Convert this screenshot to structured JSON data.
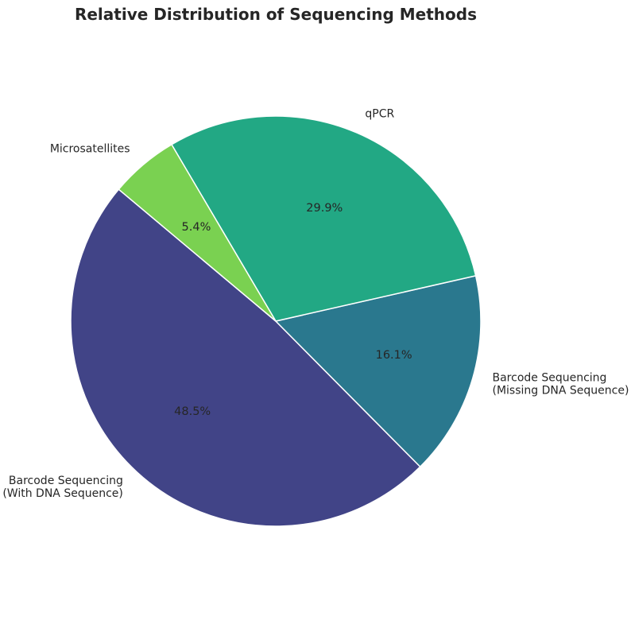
{
  "chart_data": {
    "type": "pie",
    "title": "Relative Distribution of Sequencing Methods",
    "start_angle_deg": 140,
    "direction": "counterclockwise",
    "slices": [
      {
        "label_lines": [
          "Barcode Sequencing",
          "(With DNA Sequence)"
        ],
        "value": 48.5,
        "pct_label": "48.5%",
        "color": "#414487"
      },
      {
        "label_lines": [
          "Barcode Sequencing",
          "(Missing DNA Sequence)"
        ],
        "value": 16.1,
        "pct_label": "16.1%",
        "color": "#2A788E"
      },
      {
        "label_lines": [
          "qPCR"
        ],
        "value": 29.9,
        "pct_label": "29.9%",
        "color": "#22A884"
      },
      {
        "label_lines": [
          "Microsatellites"
        ],
        "value": 5.4,
        "pct_label": "5.4%",
        "color": "#7AD151"
      }
    ]
  }
}
